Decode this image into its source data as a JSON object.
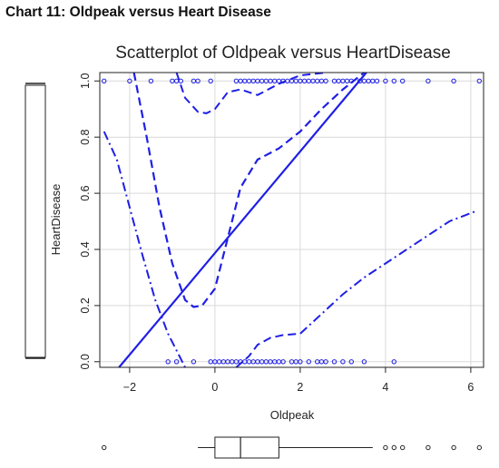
{
  "caption": "Chart 11: Oldpeak versus Heart Disease",
  "chart_data": {
    "type": "scatter",
    "title": "Scatterplot of Oldpeak versus HeartDisease",
    "xlabel": "Oldpeak",
    "ylabel": "HeartDisease",
    "xlim": [
      -2.7,
      6.3
    ],
    "ylim": [
      -0.02,
      1.03
    ],
    "x_ticks": [
      -2,
      0,
      2,
      4,
      6
    ],
    "y_ticks": [
      0.0,
      0.2,
      0.4,
      0.6,
      0.8,
      1.0
    ],
    "grid": true,
    "colors": {
      "series": "#1f1fe6",
      "box": "#222222",
      "grid": "#d9d9d9"
    },
    "points": {
      "y1": [
        -2.6,
        -2.0,
        -1.5,
        -1.0,
        -0.9,
        -0.8,
        -0.5,
        -0.4,
        -0.1,
        0.5,
        0.6,
        0.7,
        0.8,
        0.9,
        1.0,
        1.1,
        1.2,
        1.3,
        1.4,
        1.5,
        1.6,
        1.7,
        1.8,
        1.9,
        2.0,
        2.1,
        2.2,
        2.3,
        2.4,
        2.5,
        2.6,
        2.8,
        2.9,
        3.0,
        3.1,
        3.2,
        3.4,
        3.5,
        3.6,
        3.7,
        3.8,
        4.0,
        4.2,
        4.4,
        5.0,
        5.6,
        6.2
      ],
      "y0": [
        -1.1,
        -0.9,
        -0.5,
        -0.1,
        0.0,
        0.1,
        0.2,
        0.3,
        0.4,
        0.5,
        0.6,
        0.7,
        0.8,
        0.9,
        1.0,
        1.1,
        1.2,
        1.3,
        1.4,
        1.5,
        1.6,
        1.8,
        1.9,
        2.0,
        2.2,
        2.4,
        2.5,
        2.6,
        2.8,
        3.0,
        3.2,
        3.5,
        4.2
      ]
    },
    "linear_fit": {
      "style": "solid",
      "x": [
        -2.25,
        3.55
      ],
      "y": [
        -0.02,
        1.03
      ]
    },
    "smooth": {
      "style": "dashed",
      "x": [
        -1.9,
        -1.6,
        -1.3,
        -1.0,
        -0.7,
        -0.5,
        -0.3,
        0.0,
        0.3,
        0.6,
        1.0,
        1.5,
        2.0,
        2.5,
        3.0,
        3.5
      ],
      "y": [
        1.03,
        0.8,
        0.55,
        0.35,
        0.22,
        0.195,
        0.2,
        0.26,
        0.44,
        0.62,
        0.72,
        0.76,
        0.82,
        0.9,
        0.97,
        1.03
      ]
    },
    "spread_upper": {
      "style": "dashed",
      "x": [
        -0.9,
        -0.7,
        -0.4,
        -0.2,
        0.0,
        0.3,
        0.6,
        1.0,
        1.5,
        2.0,
        2.6
      ],
      "y": [
        1.03,
        0.94,
        0.89,
        0.885,
        0.9,
        0.96,
        0.97,
        0.95,
        0.99,
        1.02,
        1.03
      ]
    },
    "spread_lower": {
      "style": "dashdot",
      "x": [
        -2.6,
        -2.3,
        -2.0,
        -1.7,
        -1.4,
        -1.1,
        -0.9,
        -0.8,
        -0.7
      ],
      "y": [
        0.82,
        0.72,
        0.55,
        0.38,
        0.22,
        0.1,
        0.04,
        0.01,
        -0.02
      ]
    },
    "spread_low2": {
      "style": "dashed",
      "x": [
        0.5,
        0.8,
        1.0,
        1.3,
        1.6,
        2.0
      ],
      "y": [
        -0.02,
        0.02,
        0.06,
        0.085,
        0.095,
        0.1
      ]
    },
    "spread_high": {
      "style": "dashdot",
      "x": [
        2.0,
        2.5,
        3.0,
        3.5,
        4.0,
        4.5,
        5.0,
        5.5,
        6.1
      ],
      "y": [
        0.1,
        0.17,
        0.24,
        0.3,
        0.35,
        0.4,
        0.45,
        0.5,
        0.535
      ]
    },
    "boxplot_x": {
      "min": -0.4,
      "q1": 0.0,
      "median": 0.6,
      "q3": 1.5,
      "max": 3.7,
      "outliers": [
        -2.6,
        4.0,
        4.2,
        4.4,
        5.0,
        5.6,
        6.2
      ]
    },
    "boxplot_y": {
      "q1": 0.0,
      "q3": 1.0
    }
  }
}
